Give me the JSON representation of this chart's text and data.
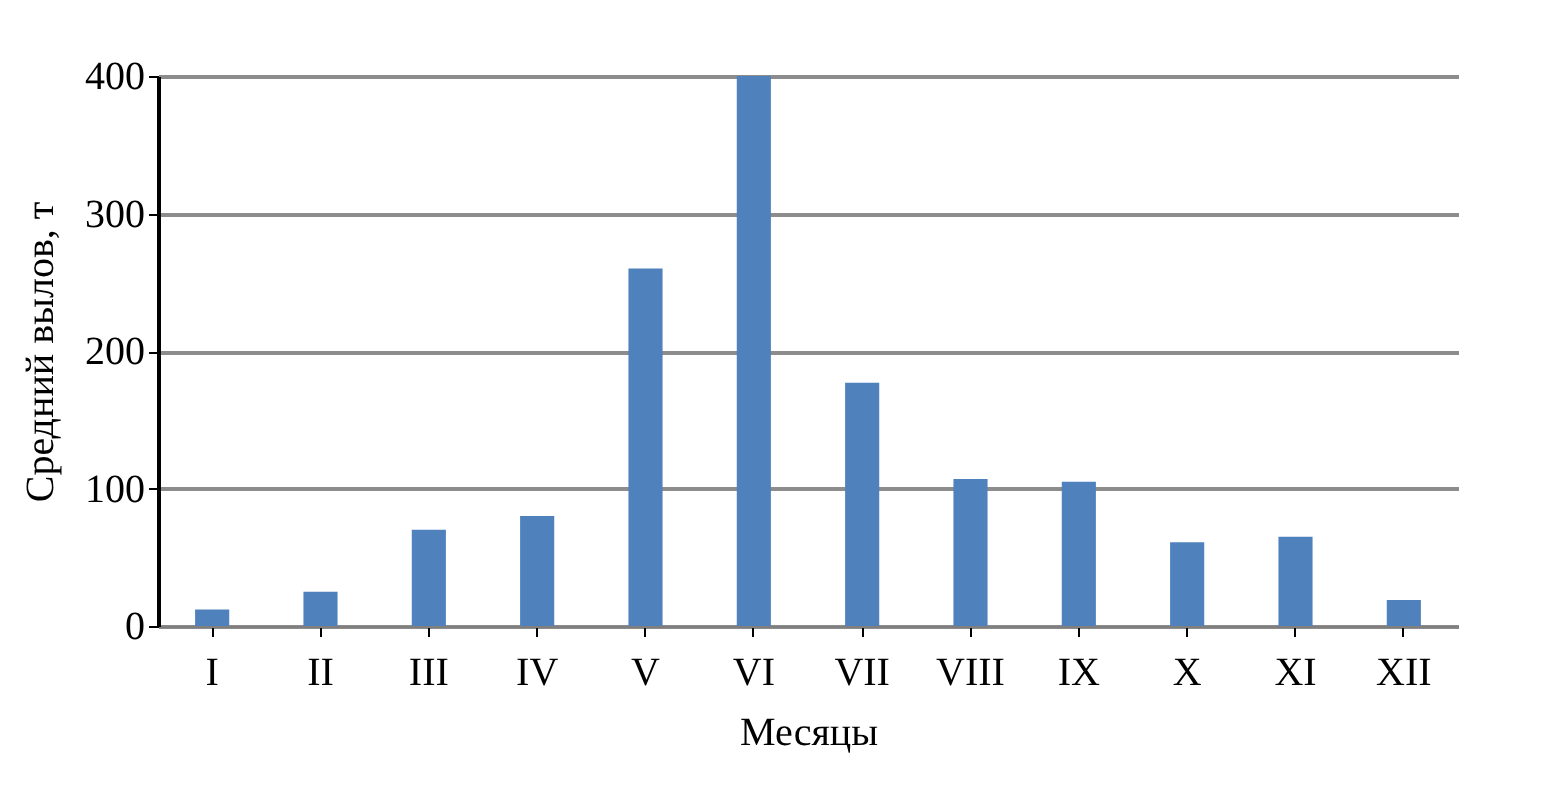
{
  "chart_data": {
    "type": "bar",
    "xlabel": "Месяцы",
    "ylabel": "Средний вылов, т",
    "categories": [
      "I",
      "II",
      "III",
      "IV",
      "V",
      "VI",
      "VII",
      "VIII",
      "IX",
      "X",
      "XI",
      "XII"
    ],
    "values": [
      12,
      25,
      70,
      80,
      260,
      400,
      177,
      107,
      105,
      61,
      65,
      19
    ],
    "color": "#4f81bd",
    "ylim": [
      0,
      400
    ],
    "yticks": [
      0,
      100,
      200,
      300,
      400
    ],
    "grid": "y"
  }
}
